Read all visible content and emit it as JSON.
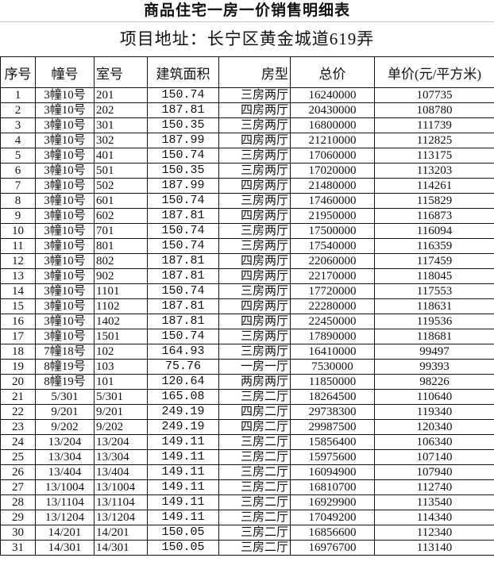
{
  "title": "商品住宅一房一价销售明细表",
  "address": "项目地址：长宁区黄金城道619弄",
  "headers": [
    "序号",
    "幢号",
    "室号",
    "建筑面积",
    "房型",
    "总价",
    "单价(元/平方米)"
  ],
  "rows": [
    [
      "1",
      "3幢10号",
      "201",
      "150.74",
      "三房两厅",
      "16240000",
      "107735"
    ],
    [
      "2",
      "3幢10号",
      "202",
      "187.81",
      "四房两厅",
      "20430000",
      "108780"
    ],
    [
      "3",
      "3幢10号",
      "301",
      "150.35",
      "三房两厅",
      "16800000",
      "111739"
    ],
    [
      "4",
      "3幢10号",
      "302",
      "187.99",
      "四房两厅",
      "21210000",
      "112825"
    ],
    [
      "5",
      "3幢10号",
      "401",
      "150.74",
      "三房两厅",
      "17060000",
      "113175"
    ],
    [
      "6",
      "3幢10号",
      "501",
      "150.35",
      "三房两厅",
      "17020000",
      "113203"
    ],
    [
      "7",
      "3幢10号",
      "502",
      "187.99",
      "四房两厅",
      "21480000",
      "114261"
    ],
    [
      "8",
      "3幢10号",
      "601",
      "150.74",
      "三房两厅",
      "17460000",
      "115829"
    ],
    [
      "9",
      "3幢10号",
      "602",
      "187.81",
      "四房两厅",
      "21950000",
      "116873"
    ],
    [
      "10",
      "3幢10号",
      "701",
      "150.74",
      "三房两厅",
      "17500000",
      "116094"
    ],
    [
      "11",
      "3幢10号",
      "801",
      "150.74",
      "三房两厅",
      "17540000",
      "116359"
    ],
    [
      "12",
      "3幢10号",
      "802",
      "187.81",
      "四房两厅",
      "22060000",
      "117459"
    ],
    [
      "13",
      "3幢10号",
      "902",
      "187.81",
      "四房两厅",
      "22170000",
      "118045"
    ],
    [
      "14",
      "3幢10号",
      "1101",
      "150.74",
      "三房两厅",
      "17720000",
      "117553"
    ],
    [
      "15",
      "3幢10号",
      "1102",
      "187.81",
      "四房两厅",
      "22280000",
      "118631"
    ],
    [
      "16",
      "3幢10号",
      "1402",
      "187.81",
      "四房两厅",
      "22450000",
      "119536"
    ],
    [
      "17",
      "3幢10号",
      "1501",
      "150.74",
      "三房两厅",
      "17890000",
      "118681"
    ],
    [
      "18",
      "7幢18号",
      "102",
      "164.93",
      "三房两厅",
      "16410000",
      "99497"
    ],
    [
      "19",
      "8幢19号",
      "103",
      "75.76",
      "一房一厅",
      "7530000",
      "99393"
    ],
    [
      "20",
      "8幢19号",
      "101",
      "120.64",
      "两房两厅",
      "11850000",
      "98226"
    ],
    [
      "21",
      "5/301",
      "5/301",
      "165.08",
      "三房二厅",
      "18264500",
      "110640"
    ],
    [
      "22",
      "9/201",
      "9/201",
      "249.19",
      "四房二厅",
      "29738300",
      "119340"
    ],
    [
      "23",
      "9/202",
      "9/202",
      "249.19",
      "四房二厅",
      "29987500",
      "120340"
    ],
    [
      "24",
      "13/204",
      "13/204",
      "149.11",
      "三房二厅",
      "15856400",
      "106340"
    ],
    [
      "25",
      "13/304",
      "13/304",
      "149.11",
      "三房二厅",
      "15975600",
      "107140"
    ],
    [
      "26",
      "13/404",
      "13/404",
      "149.11",
      "三房二厅",
      "16094900",
      "107940"
    ],
    [
      "27",
      "13/1004",
      "13/1004",
      "149.11",
      "三房二厅",
      "16810700",
      "112740"
    ],
    [
      "28",
      "13/1104",
      "13/1104",
      "149.11",
      "三房二厅",
      "16929900",
      "113540"
    ],
    [
      "29",
      "13/1204",
      "13/1204",
      "149.11",
      "三房二厅",
      "17049200",
      "114340"
    ],
    [
      "30",
      "14/201",
      "14/201",
      "150.05",
      "三房二厅",
      "16856600",
      "112340"
    ],
    [
      "31",
      "14/301",
      "14/301",
      "150.05",
      "三房二厅",
      "16976700",
      "113140"
    ]
  ]
}
